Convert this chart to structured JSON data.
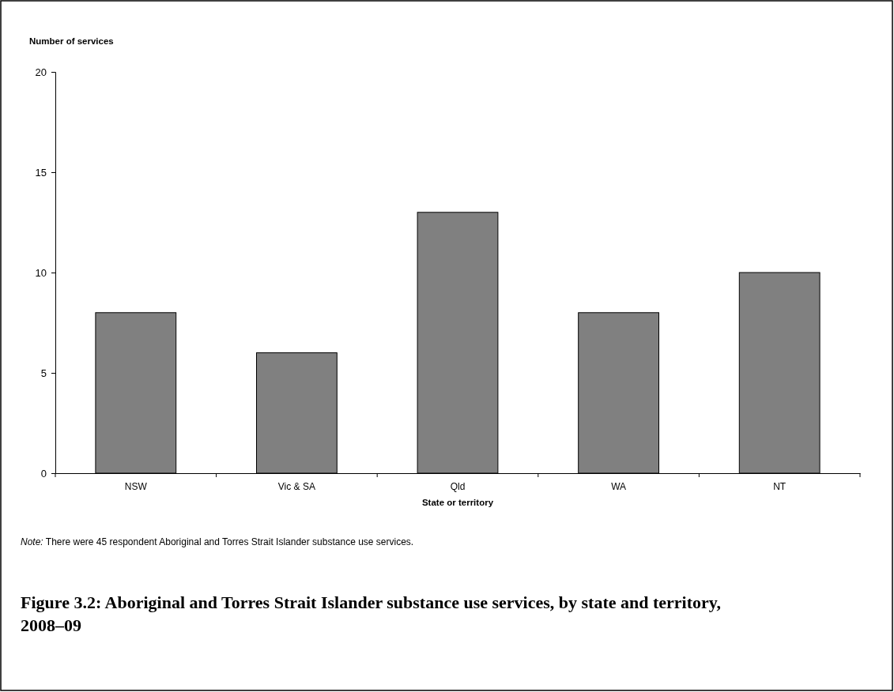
{
  "chart_data": {
    "type": "bar",
    "title": "Figure 3.2: Aboriginal and Torres Strait Islander substance use services, by state and territory, 2008–09",
    "xlabel": "State or territory",
    "ylabel": "Number of services",
    "categories": [
      "NSW",
      "Vic & SA",
      "Qld",
      "WA",
      "NT"
    ],
    "values": [
      8,
      6,
      13,
      8,
      10
    ],
    "color": "#808080",
    "ylim": [
      0,
      20
    ],
    "yticks": [
      0,
      5,
      10,
      15,
      20
    ],
    "grid": false,
    "annotations": [
      "Note: There were 45 respondent Aboriginal and Torres Strait Islander substance use services."
    ]
  }
}
